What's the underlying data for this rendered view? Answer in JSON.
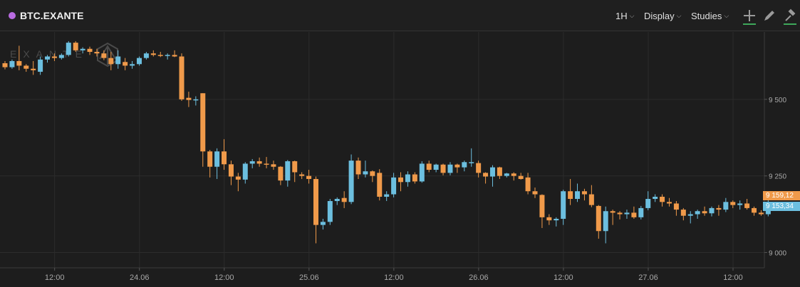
{
  "header": {
    "symbol": "BTC.EXANTE",
    "symbol_color": "#b86be0",
    "interval": "1H",
    "display": "Display",
    "studies": "Studies",
    "icons": [
      "plus-icon",
      "pencil-icon",
      "hammer-icon"
    ]
  },
  "watermark": "EXANTE",
  "price_tags": {
    "last_up": "9 159,12",
    "last_down": "9 153,34"
  },
  "colors": {
    "up": "#6cbfdf",
    "down": "#f09a4a",
    "bg": "#1d1d1d",
    "grid": "#2c2c2c",
    "text": "#a8a8a8"
  },
  "chart_data": {
    "type": "candlestick",
    "y_ticks": [
      "9 000",
      "9 250",
      "9 500"
    ],
    "y_tick_values": [
      9000,
      9250,
      9500
    ],
    "ylim": [
      8950,
      9720
    ],
    "x_tick_labels": [
      "12:00",
      "24.06",
      "12:00",
      "25.06",
      "12:00",
      "26.06",
      "12:00",
      "27.06",
      "12:00"
    ],
    "x_tick_index": [
      4,
      16,
      28,
      40,
      52,
      64,
      76,
      88,
      100
    ],
    "candles": [
      [
        9618,
        9625,
        9598,
        9605
      ],
      [
        9605,
        9630,
        9600,
        9625
      ],
      [
        9625,
        9675,
        9595,
        9610
      ],
      [
        9610,
        9615,
        9590,
        9600
      ],
      [
        9600,
        9625,
        9580,
        9595
      ],
      [
        9590,
        9640,
        9580,
        9630
      ],
      [
        9630,
        9645,
        9620,
        9640
      ],
      [
        9640,
        9650,
        9625,
        9635
      ],
      [
        9635,
        9650,
        9630,
        9645
      ],
      [
        9645,
        9690,
        9640,
        9685
      ],
      [
        9685,
        9690,
        9655,
        9660
      ],
      [
        9660,
        9670,
        9650,
        9665
      ],
      [
        9665,
        9672,
        9645,
        9655
      ],
      [
        9655,
        9665,
        9640,
        9650
      ],
      [
        9650,
        9660,
        9628,
        9635
      ],
      [
        9635,
        9655,
        9595,
        9615
      ],
      [
        9615,
        9660,
        9600,
        9640
      ],
      [
        9622,
        9635,
        9595,
        9610
      ],
      [
        9610,
        9625,
        9600,
        9615
      ],
      [
        9615,
        9640,
        9610,
        9635
      ],
      [
        9635,
        9655,
        9630,
        9650
      ],
      [
        9650,
        9660,
        9640,
        9645
      ],
      [
        9645,
        9655,
        9638,
        9642
      ],
      [
        9642,
        9650,
        9630,
        9645
      ],
      [
        9645,
        9660,
        9638,
        9640
      ],
      [
        9640,
        9650,
        9495,
        9500
      ],
      [
        9505,
        9525,
        9475,
        9498
      ],
      [
        9498,
        9510,
        9480,
        9500
      ],
      [
        9520,
        9520,
        9280,
        9330
      ],
      [
        9330,
        9335,
        9245,
        9280
      ],
      [
        9280,
        9340,
        9240,
        9330
      ],
      [
        9330,
        9370,
        9270,
        9288
      ],
      [
        9288,
        9300,
        9220,
        9248
      ],
      [
        9248,
        9260,
        9200,
        9238
      ],
      [
        9238,
        9295,
        9225,
        9290
      ],
      [
        9290,
        9305,
        9275,
        9298
      ],
      [
        9298,
        9310,
        9280,
        9290
      ],
      [
        9290,
        9312,
        9275,
        9288
      ],
      [
        9288,
        9300,
        9270,
        9280
      ],
      [
        9280,
        9282,
        9220,
        9235
      ],
      [
        9235,
        9302,
        9215,
        9298
      ],
      [
        9298,
        9300,
        9230,
        9262
      ],
      [
        9255,
        9262,
        9240,
        9250
      ],
      [
        9250,
        9270,
        9225,
        9240
      ],
      [
        9240,
        9248,
        9030,
        9090
      ],
      [
        9090,
        9110,
        9075,
        9100
      ],
      [
        9100,
        9175,
        9090,
        9168
      ],
      [
        9168,
        9180,
        9155,
        9175
      ],
      [
        9178,
        9200,
        9145,
        9165
      ],
      [
        9165,
        9320,
        9158,
        9300
      ],
      [
        9300,
        9310,
        9240,
        9255
      ],
      [
        9255,
        9300,
        9245,
        9265
      ],
      [
        9265,
        9268,
        9230,
        9250
      ],
      [
        9260,
        9272,
        9170,
        9182
      ],
      [
        9182,
        9200,
        9168,
        9190
      ],
      [
        9190,
        9260,
        9180,
        9245
      ],
      [
        9245,
        9262,
        9200,
        9230
      ],
      [
        9230,
        9265,
        9215,
        9255
      ],
      [
        9255,
        9262,
        9225,
        9232
      ],
      [
        9232,
        9298,
        9228,
        9290
      ],
      [
        9290,
        9300,
        9262,
        9270
      ],
      [
        9270,
        9290,
        9262,
        9287
      ],
      [
        9287,
        9290,
        9252,
        9260
      ],
      [
        9260,
        9295,
        9252,
        9287
      ],
      [
        9287,
        9290,
        9260,
        9278
      ],
      [
        9278,
        9300,
        9265,
        9295
      ],
      [
        9295,
        9340,
        9280,
        9295
      ],
      [
        9292,
        9300,
        9245,
        9260
      ],
      [
        9260,
        9262,
        9225,
        9248
      ],
      [
        9248,
        9285,
        9215,
        9278
      ],
      [
        9278,
        9280,
        9240,
        9250
      ],
      [
        9250,
        9260,
        9245,
        9258
      ],
      [
        9258,
        9262,
        9235,
        9250
      ],
      [
        9250,
        9260,
        9238,
        9240
      ],
      [
        9245,
        9260,
        9190,
        9200
      ],
      [
        9200,
        9212,
        9178,
        9190
      ],
      [
        9188,
        9190,
        9080,
        9115
      ],
      [
        9115,
        9125,
        9090,
        9105
      ],
      [
        9105,
        9115,
        9085,
        9110
      ],
      [
        9110,
        9205,
        9090,
        9200
      ],
      [
        9200,
        9240,
        9155,
        9175
      ],
      [
        9175,
        9225,
        9165,
        9200
      ],
      [
        9200,
        9208,
        9170,
        9190
      ],
      [
        9190,
        9220,
        9148,
        9155
      ],
      [
        9152,
        9155,
        9045,
        9070
      ],
      [
        9070,
        9150,
        9030,
        9135
      ],
      [
        9135,
        9140,
        9090,
        9130
      ],
      [
        9130,
        9135,
        9108,
        9125
      ],
      [
        9125,
        9140,
        9110,
        9130
      ],
      [
        9130,
        9150,
        9110,
        9115
      ],
      [
        9115,
        9152,
        9108,
        9145
      ],
      [
        9145,
        9200,
        9138,
        9175
      ],
      [
        9175,
        9190,
        9165,
        9182
      ],
      [
        9182,
        9190,
        9150,
        9165
      ],
      [
        9165,
        9178,
        9150,
        9160
      ],
      [
        9160,
        9168,
        9120,
        9140
      ],
      [
        9140,
        9145,
        9105,
        9120
      ],
      [
        9120,
        9135,
        9095,
        9125
      ],
      [
        9125,
        9140,
        9110,
        9135
      ],
      [
        9135,
        9150,
        9120,
        9128
      ],
      [
        9128,
        9150,
        9118,
        9145
      ],
      [
        9145,
        9155,
        9120,
        9140
      ],
      [
        9140,
        9178,
        9132,
        9165
      ],
      [
        9165,
        9170,
        9145,
        9155
      ],
      [
        9155,
        9170,
        9140,
        9160
      ],
      [
        9160,
        9175,
        9140,
        9145
      ],
      [
        9145,
        9150,
        9120,
        9130
      ],
      [
        9130,
        9138,
        9120,
        9125
      ],
      [
        9125,
        9175,
        9118,
        9148
      ],
      [
        9148,
        9165,
        9145,
        9154
      ]
    ]
  }
}
